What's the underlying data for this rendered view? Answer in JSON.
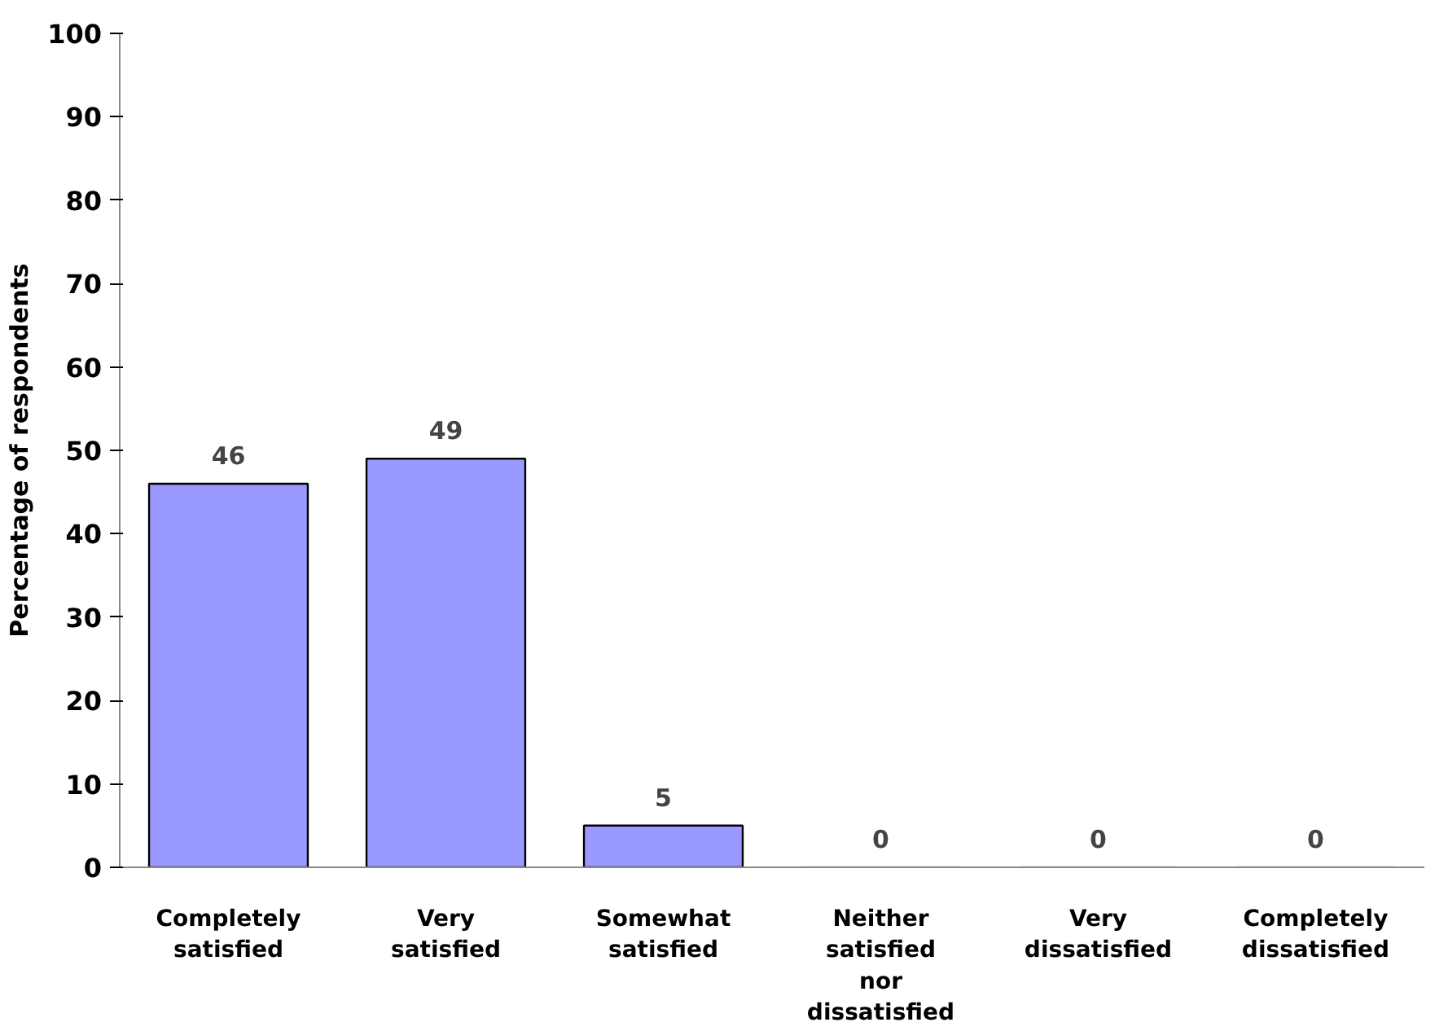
{
  "chart_data": {
    "type": "bar",
    "ylabel": "Percentage of respondents",
    "categories": [
      "Completely satisfied",
      "Very satisfied",
      "Somewhat satisfied",
      "Neither satisfied nor dissatisfied",
      "Very dissatisfied",
      "Completely dissatisfied"
    ],
    "values": [
      46,
      49,
      5,
      0,
      0,
      0
    ],
    "color": "#9999ff",
    "ylim": [
      0,
      100
    ],
    "yticks": [
      0,
      10,
      20,
      30,
      40,
      50,
      60,
      70,
      80,
      90,
      100
    ],
    "grid": false,
    "data_labels": true
  }
}
